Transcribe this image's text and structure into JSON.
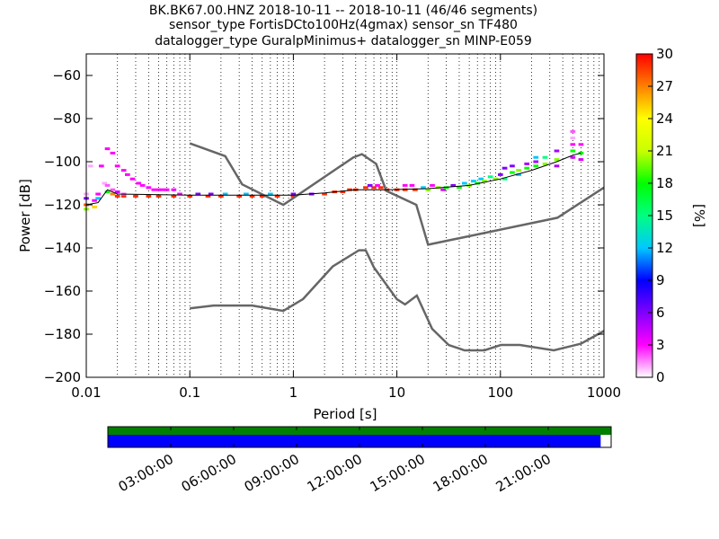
{
  "figure": {
    "title_lines": [
      "BK.BK67.00.HNZ   2018-10-11 -- 2018-10-11  (46/46 segments)",
      "sensor_type FortisDCto100Hz(4gmax) sensor_sn TF480",
      "datalogger_type GuralpMinimus+ datalogger_sn MINP-E059"
    ]
  },
  "chart_data": [
    {
      "type": "heatmap",
      "subtype": "probabilistic power spectral density",
      "xlabel": "Period [s]",
      "ylabel": "Power [dB]",
      "xscale": "log",
      "xlim": [
        0.01,
        1000
      ],
      "ylim": [
        -200,
        -50
      ],
      "x_ticks": [
        0.01,
        0.1,
        1,
        10,
        100,
        1000
      ],
      "x_tick_labels": [
        "0.01",
        "0.1",
        "1",
        "10",
        "100",
        "1000"
      ],
      "y_ticks": [
        -200,
        -180,
        -160,
        -140,
        -120,
        -100,
        -80,
        -60
      ],
      "y_tick_labels": [
        "−200",
        "−180",
        "−160",
        "−140",
        "−120",
        "−100",
        "−80",
        "−60"
      ],
      "grid": "vertical dotted",
      "colorbar": {
        "label": "[%]",
        "range": [
          0,
          30
        ],
        "ticks": [
          0,
          3,
          6,
          9,
          12,
          15,
          18,
          21,
          24,
          27,
          30
        ],
        "tick_labels": [
          "0",
          "3",
          "6",
          "9",
          "12",
          "15",
          "18",
          "21",
          "24",
          "27",
          "30"
        ],
        "colormap": [
          "#ffffff",
          "#ff00ff",
          "#8000ff",
          "#0000ff",
          "#00c8ff",
          "#00ff80",
          "#00ff00",
          "#c8ff00",
          "#ffff00",
          "#ff8000",
          "#ff0000"
        ]
      },
      "noise_models": [
        {
          "name": "NHNM",
          "color": "#666666",
          "points": [
            [
              0.1,
              -91.5
            ],
            [
              0.22,
              -97.4
            ],
            [
              0.32,
              -110.5
            ],
            [
              0.8,
              -120
            ],
            [
              3.8,
              -98
            ],
            [
              4.6,
              -96.5
            ],
            [
              6.3,
              -101
            ],
            [
              7.9,
              -113.5
            ],
            [
              15.4,
              -120
            ],
            [
              20,
              -138.5
            ],
            [
              354.8,
              -126
            ],
            [
              1000,
              -112
            ]
          ]
        },
        {
          "name": "NLNM",
          "color": "#666666",
          "points": [
            [
              0.1,
              -168
            ],
            [
              0.17,
              -166.7
            ],
            [
              0.4,
              -166.7
            ],
            [
              0.8,
              -169.2
            ],
            [
              1.24,
              -163.7
            ],
            [
              2.4,
              -148.6
            ],
            [
              4.3,
              -141.1
            ],
            [
              5,
              -141.1
            ],
            [
              6,
              -149
            ],
            [
              10,
              -163.8
            ],
            [
              12,
              -166.2
            ],
            [
              15.6,
              -162.1
            ],
            [
              21.9,
              -177.5
            ],
            [
              31.6,
              -185
            ],
            [
              45,
              -187.5
            ],
            [
              70,
              -187.5
            ],
            [
              101,
              -185
            ],
            [
              154,
              -185
            ],
            [
              328,
              -187.5
            ],
            [
              600,
              -184.4
            ],
            [
              1000,
              -178.5
            ]
          ]
        }
      ],
      "mode_curve": [
        [
          0.01,
          -120
        ],
        [
          0.013,
          -119
        ],
        [
          0.016,
          -113
        ],
        [
          0.02,
          -115
        ],
        [
          0.1,
          -115.5
        ],
        [
          1,
          -115.5
        ],
        [
          2,
          -114.5
        ],
        [
          4,
          -113
        ],
        [
          8,
          -113
        ],
        [
          20,
          -112.5
        ],
        [
          50,
          -111
        ],
        [
          100,
          -108
        ],
        [
          200,
          -104
        ],
        [
          350,
          -100
        ],
        [
          500,
          -97
        ],
        [
          600,
          -96
        ]
      ],
      "psd_segments": [
        {
          "x": 0.01,
          "power": -122,
          "pct": 20
        },
        {
          "x": 0.01,
          "power": -120,
          "pct": 28
        },
        {
          "x": 0.01,
          "power": -117,
          "pct": 6
        },
        {
          "x": 0.01,
          "power": -115,
          "pct": 1
        },
        {
          "x": 0.011,
          "power": -102,
          "pct": 1
        },
        {
          "x": 0.012,
          "power": -121,
          "pct": 25
        },
        {
          "x": 0.012,
          "power": -118,
          "pct": 3
        },
        {
          "x": 0.013,
          "power": -117,
          "pct": 12
        },
        {
          "x": 0.013,
          "power": -115,
          "pct": 3
        },
        {
          "x": 0.014,
          "power": -102,
          "pct": 3
        },
        {
          "x": 0.015,
          "power": -110,
          "pct": 1
        },
        {
          "x": 0.016,
          "power": -114,
          "pct": 18
        },
        {
          "x": 0.016,
          "power": -94,
          "pct": 3
        },
        {
          "x": 0.016,
          "power": -111,
          "pct": 2
        },
        {
          "x": 0.018,
          "power": -115,
          "pct": 27
        },
        {
          "x": 0.018,
          "power": -96,
          "pct": 3
        },
        {
          "x": 0.018,
          "power": -113,
          "pct": 2
        },
        {
          "x": 0.02,
          "power": -116,
          "pct": 29
        },
        {
          "x": 0.02,
          "power": -102,
          "pct": 3
        },
        {
          "x": 0.02,
          "power": -114,
          "pct": 4
        },
        {
          "x": 0.023,
          "power": -116,
          "pct": 29
        },
        {
          "x": 0.023,
          "power": -104,
          "pct": 3
        },
        {
          "x": 0.023,
          "power": -115,
          "pct": 2
        },
        {
          "x": 0.025,
          "power": -106,
          "pct": 3
        },
        {
          "x": 0.028,
          "power": -108,
          "pct": 3
        },
        {
          "x": 0.032,
          "power": -110,
          "pct": 3
        },
        {
          "x": 0.035,
          "power": -111,
          "pct": 3
        },
        {
          "x": 0.04,
          "power": -112,
          "pct": 3
        },
        {
          "x": 0.045,
          "power": -113,
          "pct": 3
        },
        {
          "x": 0.05,
          "power": -113,
          "pct": 3
        },
        {
          "x": 0.055,
          "power": -113,
          "pct": 3
        },
        {
          "x": 0.06,
          "power": -113,
          "pct": 3
        },
        {
          "x": 0.07,
          "power": -113,
          "pct": 3
        },
        {
          "x": 0.08,
          "power": -115,
          "pct": 3
        },
        {
          "x": 0.03,
          "power": -116,
          "pct": 29
        },
        {
          "x": 0.04,
          "power": -116,
          "pct": 29
        },
        {
          "x": 0.05,
          "power": -116,
          "pct": 29
        },
        {
          "x": 0.07,
          "power": -116,
          "pct": 29
        },
        {
          "x": 0.1,
          "power": -116,
          "pct": 29
        },
        {
          "x": 0.15,
          "power": -116,
          "pct": 29
        },
        {
          "x": 0.2,
          "power": -116,
          "pct": 29
        },
        {
          "x": 0.12,
          "power": -115,
          "pct": 6
        },
        {
          "x": 0.16,
          "power": -115,
          "pct": 6
        },
        {
          "x": 0.22,
          "power": -115,
          "pct": 12
        },
        {
          "x": 0.3,
          "power": -116,
          "pct": 29
        },
        {
          "x": 0.4,
          "power": -116,
          "pct": 29
        },
        {
          "x": 0.5,
          "power": -116,
          "pct": 29
        },
        {
          "x": 0.7,
          "power": -116,
          "pct": 29
        },
        {
          "x": 1,
          "power": -116,
          "pct": 29
        },
        {
          "x": 0.35,
          "power": -115,
          "pct": 12
        },
        {
          "x": 0.6,
          "power": -115,
          "pct": 12
        },
        {
          "x": 1.0,
          "power": -115,
          "pct": 6
        },
        {
          "x": 1.5,
          "power": -115,
          "pct": 6
        },
        {
          "x": 2,
          "power": -115,
          "pct": 29
        },
        {
          "x": 2.5,
          "power": -114,
          "pct": 29
        },
        {
          "x": 3,
          "power": -114,
          "pct": 29
        },
        {
          "x": 3.5,
          "power": -113,
          "pct": 29
        },
        {
          "x": 4,
          "power": -113,
          "pct": 29
        },
        {
          "x": 5,
          "power": -112,
          "pct": 29
        },
        {
          "x": 6,
          "power": -112,
          "pct": 29
        },
        {
          "x": 7,
          "power": -112,
          "pct": 29
        },
        {
          "x": 5.5,
          "power": -111,
          "pct": 6
        },
        {
          "x": 6.5,
          "power": -111,
          "pct": 3
        },
        {
          "x": 8,
          "power": -113,
          "pct": 29
        },
        {
          "x": 10,
          "power": -113,
          "pct": 29
        },
        {
          "x": 12,
          "power": -113,
          "pct": 29
        },
        {
          "x": 12,
          "power": -111,
          "pct": 3
        },
        {
          "x": 14,
          "power": -111,
          "pct": 3
        },
        {
          "x": 15,
          "power": -113,
          "pct": 29
        },
        {
          "x": 18,
          "power": -112,
          "pct": 12
        },
        {
          "x": 20,
          "power": -113,
          "pct": 20
        },
        {
          "x": 22,
          "power": -111,
          "pct": 3
        },
        {
          "x": 25,
          "power": -112,
          "pct": 20
        },
        {
          "x": 28,
          "power": -113,
          "pct": 4
        },
        {
          "x": 30,
          "power": -112,
          "pct": 18
        },
        {
          "x": 35,
          "power": -111,
          "pct": 6
        },
        {
          "x": 40,
          "power": -112,
          "pct": 18
        },
        {
          "x": 45,
          "power": -110,
          "pct": 12
        },
        {
          "x": 50,
          "power": -111,
          "pct": 20
        },
        {
          "x": 55,
          "power": -109,
          "pct": 12
        },
        {
          "x": 60,
          "power": -110,
          "pct": 18
        },
        {
          "x": 65,
          "power": -108,
          "pct": 12
        },
        {
          "x": 70,
          "power": -109,
          "pct": 20
        },
        {
          "x": 80,
          "power": -107,
          "pct": 15
        },
        {
          "x": 90,
          "power": -108,
          "pct": 20
        },
        {
          "x": 100,
          "power": -106,
          "pct": 6
        },
        {
          "x": 110,
          "power": -108,
          "pct": 15
        },
        {
          "x": 110,
          "power": -103,
          "pct": 6
        },
        {
          "x": 130,
          "power": -105,
          "pct": 18
        },
        {
          "x": 130,
          "power": -102,
          "pct": 6
        },
        {
          "x": 150,
          "power": -104,
          "pct": 20
        },
        {
          "x": 150,
          "power": -106,
          "pct": 12
        },
        {
          "x": 180,
          "power": -101,
          "pct": 5
        },
        {
          "x": 180,
          "power": -103,
          "pct": 18
        },
        {
          "x": 220,
          "power": -100,
          "pct": 5
        },
        {
          "x": 220,
          "power": -102,
          "pct": 18
        },
        {
          "x": 220,
          "power": -98,
          "pct": 12
        },
        {
          "x": 270,
          "power": -101,
          "pct": 20
        },
        {
          "x": 270,
          "power": -98,
          "pct": 15
        },
        {
          "x": 350,
          "power": -95,
          "pct": 5
        },
        {
          "x": 350,
          "power": -99,
          "pct": 20
        },
        {
          "x": 350,
          "power": -102,
          "pct": 5
        },
        {
          "x": 500,
          "power": -86,
          "pct": 2
        },
        {
          "x": 500,
          "power": -89,
          "pct": 1
        },
        {
          "x": 500,
          "power": -92,
          "pct": 3
        },
        {
          "x": 500,
          "power": -95,
          "pct": 18
        },
        {
          "x": 500,
          "power": -98,
          "pct": 4
        },
        {
          "x": 600,
          "power": -92,
          "pct": 3
        },
        {
          "x": 600,
          "power": -96,
          "pct": 18
        },
        {
          "x": 600,
          "power": -99,
          "pct": 4
        }
      ]
    },
    {
      "type": "bar",
      "subtype": "data coverage timeline",
      "x_tick_labels": [
        "03:00:00",
        "06:00:00",
        "09:00:00",
        "12:00:00",
        "15:00:00",
        "18:00:00",
        "21:00:00"
      ],
      "x_ticks_hours": [
        3,
        6,
        9,
        12,
        15,
        18,
        21
      ],
      "range_hours": [
        0,
        24
      ],
      "tracks": [
        {
          "color": "#008000",
          "start_hours": 0,
          "end_hours": 24
        },
        {
          "color": "#0000ff",
          "start_hours": 0,
          "end_hours": 23.5
        }
      ]
    }
  ]
}
